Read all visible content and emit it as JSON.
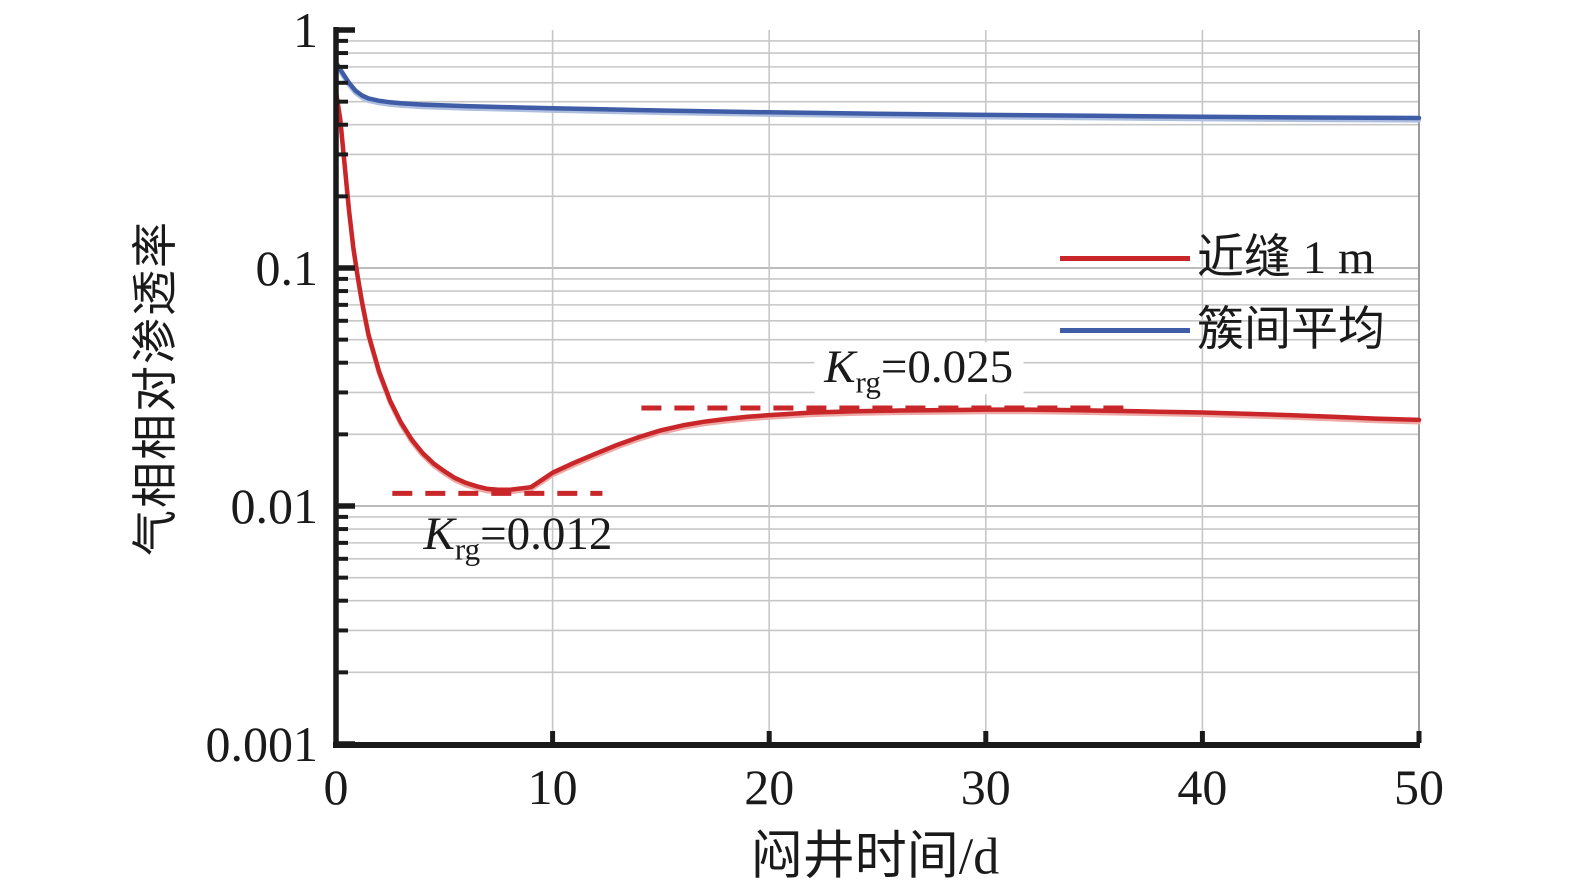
{
  "figure": {
    "background": "#ffffff",
    "colors": {
      "axis": "#1a1a1a",
      "text": "#1a1a1a",
      "grid_minor": "#c7c7c7",
      "grid_major": "#b2b2b2",
      "right_border": "#9a9a9a",
      "red": "#c9262a",
      "red_light": "#eda9a6",
      "blue": "#3f5ca6",
      "blue_light": "#aebedf"
    }
  },
  "chart_data": {
    "type": "line",
    "title": "",
    "xlabel": "闷井时间/d",
    "ylabel": "气相相对渗透率",
    "xlim": [
      0,
      50
    ],
    "ylim": [
      0.001,
      1
    ],
    "yscale": "log",
    "grid": "horizontal minor log gridlines + vertical gridlines at major x ticks",
    "legend_position": "upper-right-inside",
    "x_ticks": [
      0,
      10,
      20,
      30,
      40,
      50
    ],
    "x_tick_labels": [
      "0",
      "10",
      "20",
      "30",
      "40",
      "50"
    ],
    "y_ticks": [
      1,
      0.1,
      0.01,
      0.001
    ],
    "y_tick_labels": [
      "1",
      "0.1",
      "0.01",
      "0.001"
    ],
    "series": [
      {
        "name": "近缝 1 m",
        "color": "#c9262a",
        "x": [
          0,
          0.2,
          0.4,
          0.6,
          0.8,
          1.0,
          1.2,
          1.5,
          2,
          2.5,
          3,
          3.5,
          4,
          4.5,
          5,
          5.5,
          6,
          6.5,
          7,
          7.5,
          8,
          9,
          10,
          11,
          12,
          13,
          14,
          15,
          16,
          17,
          18,
          19,
          20,
          22,
          24,
          26,
          28,
          30,
          32,
          34,
          36,
          38,
          40,
          42,
          44,
          46,
          48,
          50
        ],
        "y": [
          0.55,
          0.42,
          0.27,
          0.175,
          0.122,
          0.092,
          0.072,
          0.0525,
          0.0365,
          0.0277,
          0.0224,
          0.019,
          0.0167,
          0.0151,
          0.014,
          0.0131,
          0.0125,
          0.0121,
          0.0118,
          0.0117,
          0.0117,
          0.012,
          0.0138,
          0.0152,
          0.0166,
          0.0181,
          0.0195,
          0.0208,
          0.0218,
          0.0226,
          0.0232,
          0.0237,
          0.0241,
          0.0247,
          0.025,
          0.0252,
          0.0253,
          0.0254,
          0.0254,
          0.0253,
          0.0251,
          0.0249,
          0.0247,
          0.0244,
          0.0241,
          0.0237,
          0.0233,
          0.023
        ]
      },
      {
        "name": "簇间平均",
        "color": "#3f5ca6",
        "x": [
          0,
          0.3,
          0.6,
          0.9,
          1.2,
          1.5,
          2,
          2.5,
          3,
          4,
          5,
          6,
          8,
          10,
          12,
          15,
          20,
          25,
          30,
          35,
          40,
          45,
          50
        ],
        "y": [
          0.73,
          0.66,
          0.6,
          0.556,
          0.531,
          0.516,
          0.504,
          0.497,
          0.492,
          0.486,
          0.482,
          0.479,
          0.474,
          0.469,
          0.465,
          0.459,
          0.451,
          0.445,
          0.44,
          0.436,
          0.432,
          0.429,
          0.427
        ]
      }
    ],
    "annotations": [
      {
        "symbol": "K",
        "subscript": "rg",
        "text": "=0.012",
        "line_value": 0.0113,
        "line_t_start": 2.6,
        "line_t_end": 12.3,
        "style": "dashed-red"
      },
      {
        "symbol": "K",
        "subscript": "rg",
        "text": "=0.025",
        "line_value": 0.0258,
        "line_t_start": 14.1,
        "line_t_end": 36.5,
        "style": "dashed-red"
      }
    ]
  }
}
